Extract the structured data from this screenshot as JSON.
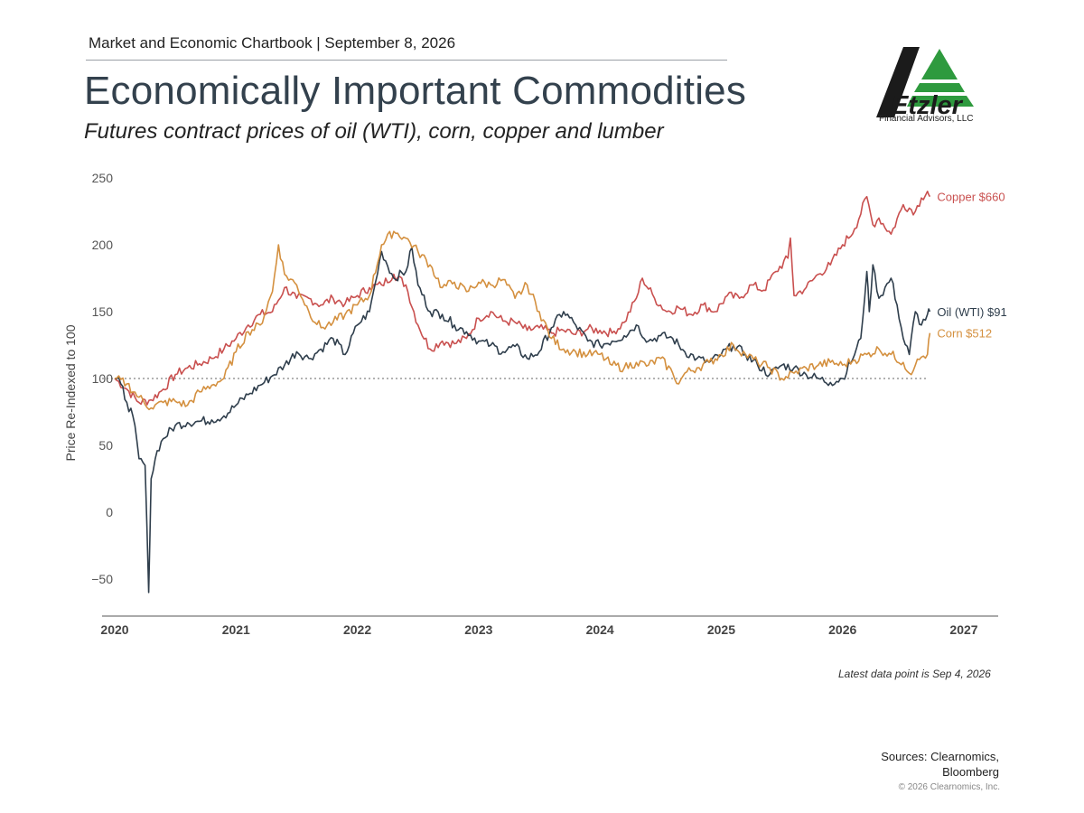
{
  "header": {
    "chartbook_line": "Market and Economic Chartbook | September 8, 2026",
    "title": "Economically Important Commodities",
    "subtitle": "Futures contract prices of oil (WTI), corn, copper and lumber"
  },
  "logo": {
    "name": "Etzler",
    "tagline": "Financial Advisors, LLC",
    "colors": {
      "mark": "#1b1b1b",
      "triangle": "#2e9a3e"
    }
  },
  "footer": {
    "latest_note": "Latest data point is Sep 4, 2026",
    "sources_line1": "Sources: Clearnomics,",
    "sources_line2": "Bloomberg",
    "copyright": "© 2026 Clearnomics, Inc."
  },
  "chart_data": {
    "type": "line",
    "ylabel": "Price Re-Indexed to 100",
    "xlabel": "",
    "x_ticks": [
      "2020",
      "2021",
      "2022",
      "2023",
      "2024",
      "2025",
      "2026",
      "2027"
    ],
    "y_ticks": [
      "250",
      "200",
      "150",
      "100",
      "50",
      "0",
      "−50"
    ],
    "y_tick_values": [
      250,
      200,
      150,
      100,
      50,
      0,
      -50
    ],
    "xlim": [
      2020.0,
      2027.0
    ],
    "ylim": [
      -60,
      255
    ],
    "reference_line": 100,
    "series": [
      {
        "name": "Copper",
        "label": "Copper $660",
        "color": "#c9504f",
        "points": [
          [
            2020.0,
            100
          ],
          [
            2020.1,
            92
          ],
          [
            2020.2,
            82
          ],
          [
            2020.3,
            84
          ],
          [
            2020.4,
            92
          ],
          [
            2020.5,
            103
          ],
          [
            2020.6,
            108
          ],
          [
            2020.7,
            111
          ],
          [
            2020.8,
            115
          ],
          [
            2020.9,
            122
          ],
          [
            2021.0,
            130
          ],
          [
            2021.1,
            140
          ],
          [
            2021.2,
            148
          ],
          [
            2021.3,
            150
          ],
          [
            2021.4,
            168
          ],
          [
            2021.5,
            160
          ],
          [
            2021.6,
            160
          ],
          [
            2021.7,
            155
          ],
          [
            2021.8,
            160
          ],
          [
            2021.9,
            156
          ],
          [
            2022.0,
            162
          ],
          [
            2022.1,
            168
          ],
          [
            2022.2,
            170
          ],
          [
            2022.3,
            178
          ],
          [
            2022.4,
            170
          ],
          [
            2022.5,
            140
          ],
          [
            2022.6,
            122
          ],
          [
            2022.7,
            128
          ],
          [
            2022.8,
            126
          ],
          [
            2022.9,
            130
          ],
          [
            2023.0,
            145
          ],
          [
            2023.1,
            150
          ],
          [
            2023.2,
            143
          ],
          [
            2023.3,
            142
          ],
          [
            2023.4,
            136
          ],
          [
            2023.5,
            138
          ],
          [
            2023.6,
            134
          ],
          [
            2023.7,
            136
          ],
          [
            2023.8,
            133
          ],
          [
            2023.9,
            137
          ],
          [
            2024.0,
            136
          ],
          [
            2024.1,
            134
          ],
          [
            2024.2,
            142
          ],
          [
            2024.3,
            160
          ],
          [
            2024.35,
            175
          ],
          [
            2024.45,
            160
          ],
          [
            2024.55,
            150
          ],
          [
            2024.65,
            153
          ],
          [
            2024.75,
            148
          ],
          [
            2024.85,
            155
          ],
          [
            2024.95,
            150
          ],
          [
            2025.05,
            162
          ],
          [
            2025.15,
            160
          ],
          [
            2025.25,
            170
          ],
          [
            2025.35,
            166
          ],
          [
            2025.45,
            180
          ],
          [
            2025.55,
            190
          ],
          [
            2025.57,
            205
          ],
          [
            2025.6,
            162
          ],
          [
            2025.7,
            168
          ],
          [
            2025.8,
            178
          ],
          [
            2025.9,
            185
          ],
          [
            2026.0,
            200
          ],
          [
            2026.1,
            212
          ],
          [
            2026.2,
            236
          ],
          [
            2026.25,
            215
          ],
          [
            2026.3,
            220
          ],
          [
            2026.4,
            208
          ],
          [
            2026.5,
            230
          ],
          [
            2026.6,
            225
          ],
          [
            2026.65,
            235
          ],
          [
            2026.7,
            240
          ],
          [
            2026.72,
            236
          ]
        ]
      },
      {
        "name": "Oil (WTI)",
        "label": "Oil (WTI) $91",
        "color": "#2f3e4c",
        "points": [
          [
            2020.0,
            100
          ],
          [
            2020.05,
            96
          ],
          [
            2020.1,
            82
          ],
          [
            2020.15,
            72
          ],
          [
            2020.2,
            40
          ],
          [
            2020.25,
            35
          ],
          [
            2020.28,
            -60
          ],
          [
            2020.3,
            25
          ],
          [
            2020.35,
            46
          ],
          [
            2020.4,
            55
          ],
          [
            2020.5,
            65
          ],
          [
            2020.6,
            67
          ],
          [
            2020.7,
            68
          ],
          [
            2020.8,
            69
          ],
          [
            2020.9,
            72
          ],
          [
            2021.0,
            80
          ],
          [
            2021.1,
            88
          ],
          [
            2021.2,
            95
          ],
          [
            2021.3,
            102
          ],
          [
            2021.4,
            110
          ],
          [
            2021.5,
            120
          ],
          [
            2021.6,
            115
          ],
          [
            2021.7,
            122
          ],
          [
            2021.8,
            130
          ],
          [
            2021.9,
            118
          ],
          [
            2022.0,
            140
          ],
          [
            2022.1,
            150
          ],
          [
            2022.15,
            172
          ],
          [
            2022.2,
            195
          ],
          [
            2022.3,
            175
          ],
          [
            2022.4,
            180
          ],
          [
            2022.45,
            198
          ],
          [
            2022.5,
            170
          ],
          [
            2022.6,
            150
          ],
          [
            2022.7,
            148
          ],
          [
            2022.8,
            140
          ],
          [
            2022.9,
            135
          ],
          [
            2023.0,
            128
          ],
          [
            2023.1,
            125
          ],
          [
            2023.2,
            120
          ],
          [
            2023.3,
            124
          ],
          [
            2023.4,
            115
          ],
          [
            2023.5,
            120
          ],
          [
            2023.6,
            138
          ],
          [
            2023.7,
            150
          ],
          [
            2023.8,
            140
          ],
          [
            2023.9,
            128
          ],
          [
            2024.0,
            125
          ],
          [
            2024.1,
            128
          ],
          [
            2024.2,
            132
          ],
          [
            2024.3,
            140
          ],
          [
            2024.4,
            128
          ],
          [
            2024.5,
            132
          ],
          [
            2024.6,
            130
          ],
          [
            2024.7,
            120
          ],
          [
            2024.8,
            115
          ],
          [
            2024.9,
            112
          ],
          [
            2025.0,
            118
          ],
          [
            2025.1,
            125
          ],
          [
            2025.2,
            118
          ],
          [
            2025.3,
            110
          ],
          [
            2025.4,
            103
          ],
          [
            2025.5,
            110
          ],
          [
            2025.6,
            108
          ],
          [
            2025.7,
            103
          ],
          [
            2025.8,
            100
          ],
          [
            2025.9,
            97
          ],
          [
            2026.0,
            100
          ],
          [
            2026.1,
            118
          ],
          [
            2026.15,
            130
          ],
          [
            2026.2,
            180
          ],
          [
            2026.22,
            150
          ],
          [
            2026.25,
            185
          ],
          [
            2026.3,
            160
          ],
          [
            2026.4,
            175
          ],
          [
            2026.45,
            155
          ],
          [
            2026.5,
            130
          ],
          [
            2026.55,
            118
          ],
          [
            2026.6,
            150
          ],
          [
            2026.65,
            140
          ],
          [
            2026.7,
            148
          ],
          [
            2026.72,
            150
          ]
        ]
      },
      {
        "name": "Corn",
        "label": "Corn $512",
        "color": "#d4903f",
        "points": [
          [
            2020.0,
            100
          ],
          [
            2020.1,
            96
          ],
          [
            2020.2,
            86
          ],
          [
            2020.3,
            78
          ],
          [
            2020.4,
            82
          ],
          [
            2020.5,
            83
          ],
          [
            2020.6,
            80
          ],
          [
            2020.7,
            90
          ],
          [
            2020.8,
            95
          ],
          [
            2020.9,
            100
          ],
          [
            2021.0,
            120
          ],
          [
            2021.1,
            135
          ],
          [
            2021.2,
            140
          ],
          [
            2021.3,
            165
          ],
          [
            2021.35,
            200
          ],
          [
            2021.4,
            178
          ],
          [
            2021.5,
            170
          ],
          [
            2021.6,
            150
          ],
          [
            2021.7,
            138
          ],
          [
            2021.8,
            142
          ],
          [
            2021.9,
            148
          ],
          [
            2022.0,
            155
          ],
          [
            2022.1,
            162
          ],
          [
            2022.2,
            200
          ],
          [
            2022.3,
            210
          ],
          [
            2022.4,
            205
          ],
          [
            2022.5,
            195
          ],
          [
            2022.6,
            185
          ],
          [
            2022.7,
            168
          ],
          [
            2022.8,
            172
          ],
          [
            2022.9,
            165
          ],
          [
            2023.0,
            172
          ],
          [
            2023.1,
            170
          ],
          [
            2023.2,
            174
          ],
          [
            2023.3,
            160
          ],
          [
            2023.4,
            170
          ],
          [
            2023.5,
            150
          ],
          [
            2023.6,
            130
          ],
          [
            2023.7,
            122
          ],
          [
            2023.8,
            120
          ],
          [
            2023.9,
            118
          ],
          [
            2024.0,
            118
          ],
          [
            2024.1,
            110
          ],
          [
            2024.2,
            108
          ],
          [
            2024.3,
            112
          ],
          [
            2024.4,
            110
          ],
          [
            2024.5,
            115
          ],
          [
            2024.6,
            104
          ],
          [
            2024.65,
            96
          ],
          [
            2024.7,
            104
          ],
          [
            2024.8,
            108
          ],
          [
            2024.9,
            112
          ],
          [
            2025.0,
            118
          ],
          [
            2025.1,
            125
          ],
          [
            2025.2,
            118
          ],
          [
            2025.3,
            112
          ],
          [
            2025.4,
            108
          ],
          [
            2025.5,
            100
          ],
          [
            2025.6,
            104
          ],
          [
            2025.7,
            108
          ],
          [
            2025.8,
            110
          ],
          [
            2025.9,
            112
          ],
          [
            2026.0,
            110
          ],
          [
            2026.1,
            114
          ],
          [
            2026.2,
            118
          ],
          [
            2026.3,
            122
          ],
          [
            2026.4,
            118
          ],
          [
            2026.5,
            112
          ],
          [
            2026.55,
            104
          ],
          [
            2026.6,
            110
          ],
          [
            2026.65,
            116
          ],
          [
            2026.7,
            118
          ],
          [
            2026.72,
            134
          ]
        ]
      }
    ]
  }
}
